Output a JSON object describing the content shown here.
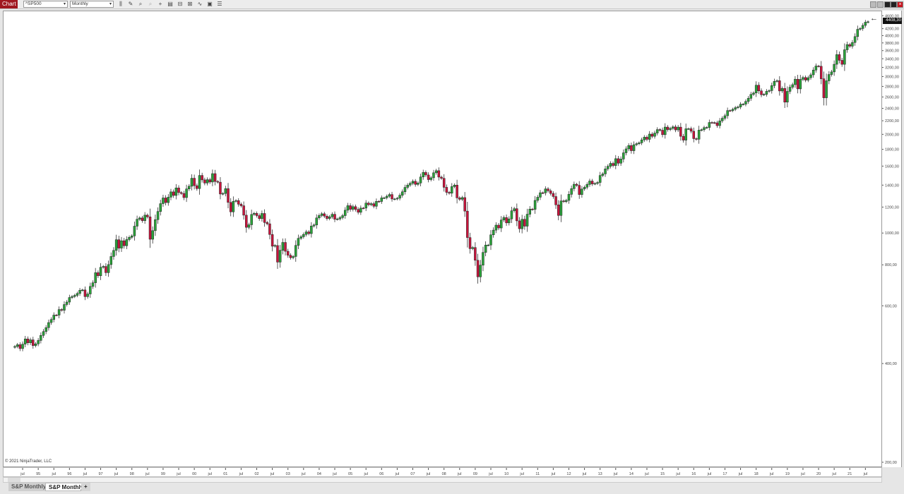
{
  "toolbar": {
    "chart_label": "Chart",
    "instrument": "^SP500",
    "interval": "Monthly"
  },
  "tabs": [
    {
      "label": "S&P Monthly",
      "active": false
    },
    {
      "label": "S&P Monthly",
      "active": true
    }
  ],
  "add_tab": "+",
  "copyright": "© 2021 NinjaTrader, LLC",
  "colors": {
    "up": "#2aa33a",
    "down": "#c8143c",
    "outline": "#222222",
    "title_bar": "#a01820"
  },
  "chart_data": {
    "type": "candlestick",
    "title": "",
    "y_scale": "log",
    "ylim": [
      200,
      4650
    ],
    "start_month": "1994-04",
    "end_month": "2021-08",
    "first_open": 448.3,
    "last_price_label": "4408,30",
    "closes": [
      450.9,
      456.5,
      444.3,
      458.3,
      475.5,
      462.7,
      472.4,
      453.7,
      459.3,
      470.4,
      487.4,
      500.7,
      514.7,
      533.4,
      544.8,
      562.1,
      561.9,
      584.4,
      581.5,
      605.4,
      615.9,
      636.0,
      640.4,
      645.5,
      654.2,
      669.1,
      670.6,
      639.9,
      652.0,
      687.3,
      705.3,
      757.0,
      740.7,
      786.2,
      790.8,
      757.1,
      801.3,
      848.3,
      885.1,
      954.3,
      899.5,
      947.3,
      914.6,
      955.4,
      970.4,
      980.3,
      1049.3,
      1101.8,
      1111.8,
      1090.8,
      1133.8,
      1120.7,
      957.3,
      1017.0,
      1098.7,
      1163.6,
      1229.2,
      1279.6,
      1238.3,
      1286.4,
      1335.2,
      1301.8,
      1372.7,
      1328.7,
      1320.4,
      1282.7,
      1362.9,
      1388.9,
      1469.3,
      1394.5,
      1366.4,
      1498.6,
      1452.4,
      1420.6,
      1454.6,
      1430.8,
      1517.7,
      1436.5,
      1429.4,
      1315.2,
      1320.3,
      1366.0,
      1239.9,
      1160.3,
      1249.5,
      1255.8,
      1224.4,
      1211.2,
      1133.6,
      1040.9,
      1059.8,
      1139.5,
      1148.1,
      1130.2,
      1106.7,
      1147.4,
      1076.9,
      1067.1,
      989.8,
      911.6,
      916.1,
      815.3,
      885.8,
      936.3,
      879.8,
      855.7,
      841.2,
      848.2,
      916.9,
      963.6,
      974.5,
      990.3,
      1008.0,
      996.0,
      1050.7,
      1058.2,
      1111.9,
      1131.1,
      1144.9,
      1126.2,
      1107.3,
      1120.7,
      1140.8,
      1101.7,
      1104.2,
      1114.6,
      1130.2,
      1173.8,
      1211.9,
      1181.3,
      1203.6,
      1180.6,
      1156.9,
      1191.5,
      1191.3,
      1234.2,
      1220.3,
      1228.8,
      1207.0,
      1249.5,
      1248.3,
      1280.1,
      1280.7,
      1294.9,
      1310.6,
      1270.1,
      1270.2,
      1276.7,
      1303.8,
      1335.9,
      1377.9,
      1400.6,
      1418.3,
      1438.2,
      1406.8,
      1420.9,
      1482.4,
      1530.6,
      1503.4,
      1455.3,
      1474.0,
      1526.8,
      1549.4,
      1481.1,
      1468.4,
      1378.6,
      1330.6,
      1322.7,
      1385.6,
      1400.4,
      1280.0,
      1267.4,
      1282.8,
      1166.4,
      968.8,
      896.2,
      903.3,
      825.9,
      735.1,
      797.9,
      872.8,
      919.1,
      919.3,
      987.5,
      1020.6,
      1057.1,
      1036.2,
      1095.6,
      1115.1,
      1073.9,
      1104.5,
      1169.4,
      1186.7,
      1089.4,
      1030.7,
      1101.6,
      1049.3,
      1141.2,
      1183.3,
      1180.6,
      1257.6,
      1286.1,
      1327.2,
      1325.8,
      1363.6,
      1345.2,
      1320.6,
      1292.3,
      1218.9,
      1131.4,
      1253.3,
      1247.0,
      1257.6,
      1312.4,
      1365.7,
      1408.5,
      1397.9,
      1310.3,
      1362.2,
      1379.3,
      1406.6,
      1440.7,
      1412.2,
      1416.2,
      1426.2,
      1498.1,
      1514.7,
      1569.2,
      1597.6,
      1630.7,
      1606.3,
      1685.7,
      1633.0,
      1681.6,
      1756.5,
      1805.8,
      1848.4,
      1782.6,
      1859.5,
      1872.3,
      1883.9,
      1923.6,
      1960.2,
      1930.7,
      2003.4,
      1972.3,
      2018.1,
      2067.6,
      2058.9,
      1995.0,
      2104.5,
      2067.9,
      2085.5,
      2107.4,
      2063.1,
      2103.8,
      1972.2,
      1920.0,
      2079.4,
      2080.4,
      2043.9,
      1940.2,
      1932.2,
      2059.7,
      2065.3,
      2096.9,
      2098.9,
      2173.6,
      2171.0,
      2168.3,
      2126.2,
      2198.8,
      2238.8,
      2278.9,
      2363.6,
      2362.7,
      2384.2,
      2411.8,
      2423.4,
      2470.3,
      2471.7,
      2519.4,
      2575.3,
      2647.6,
      2673.6,
      2823.8,
      2713.8,
      2640.9,
      2648.1,
      2705.3,
      2718.4,
      2816.3,
      2901.5,
      2914.0,
      2711.7,
      2760.2,
      2506.9,
      2704.1,
      2784.5,
      2834.4,
      2945.8,
      2752.1,
      2941.8,
      2980.4,
      2926.5,
      2976.7,
      3037.6,
      3141.0,
      3230.8,
      3225.5,
      2954.2,
      2584.6,
      2912.4,
      3044.3,
      3100.3,
      3271.1,
      3500.3,
      3363.0,
      3270.0,
      3621.6,
      3756.1,
      3714.2,
      3811.2,
      3972.9,
      4181.2,
      4204.1,
      4297.5,
      4395.3,
      4408.3
    ],
    "y_ticks": [
      {
        "v": 4600,
        "label": "4600,00"
      },
      {
        "v": 4200,
        "label": "4200,00"
      },
      {
        "v": 4000,
        "label": "4000,00"
      },
      {
        "v": 3800,
        "label": "3800,00"
      },
      {
        "v": 3600,
        "label": "3600,00"
      },
      {
        "v": 3400,
        "label": "3400,00"
      },
      {
        "v": 3200,
        "label": "3200,00"
      },
      {
        "v": 3000,
        "label": "3000,00"
      },
      {
        "v": 2800,
        "label": "2800,00"
      },
      {
        "v": 2600,
        "label": "2600,00"
      },
      {
        "v": 2400,
        "label": "2400,00"
      },
      {
        "v": 2200,
        "label": "2200,00"
      },
      {
        "v": 2000,
        "label": "2000,00"
      },
      {
        "v": 1800,
        "label": "1800,00"
      },
      {
        "v": 1600,
        "label": "1600,00"
      },
      {
        "v": 1400,
        "label": "1400,00"
      },
      {
        "v": 1200,
        "label": "1200,00"
      },
      {
        "v": 1000,
        "label": "1000,00"
      },
      {
        "v": 800,
        "label": "800,00"
      },
      {
        "v": 600,
        "label": "600,00"
      },
      {
        "v": 400,
        "label": "400,00"
      },
      {
        "v": 200,
        "label": "200,00"
      }
    ],
    "x_ticks": [
      "jul",
      "95",
      "jul",
      "96",
      "jul",
      "97",
      "jul",
      "98",
      "jul",
      "99",
      "jul",
      "00",
      "jul",
      "01",
      "jul",
      "02",
      "jul",
      "03",
      "jul",
      "04",
      "jul",
      "05",
      "jul",
      "06",
      "jul",
      "07",
      "jul",
      "08",
      "jul",
      "09",
      "jul",
      "10",
      "jul",
      "11",
      "jul",
      "12",
      "jul",
      "13",
      "jul",
      "14",
      "jul",
      "15",
      "jul",
      "16",
      "jul",
      "17",
      "jul",
      "18",
      "jul",
      "19",
      "jul",
      "20",
      "jul",
      "21",
      "jul"
    ],
    "x_ticks_first_month": "1994-07",
    "grid": false
  }
}
